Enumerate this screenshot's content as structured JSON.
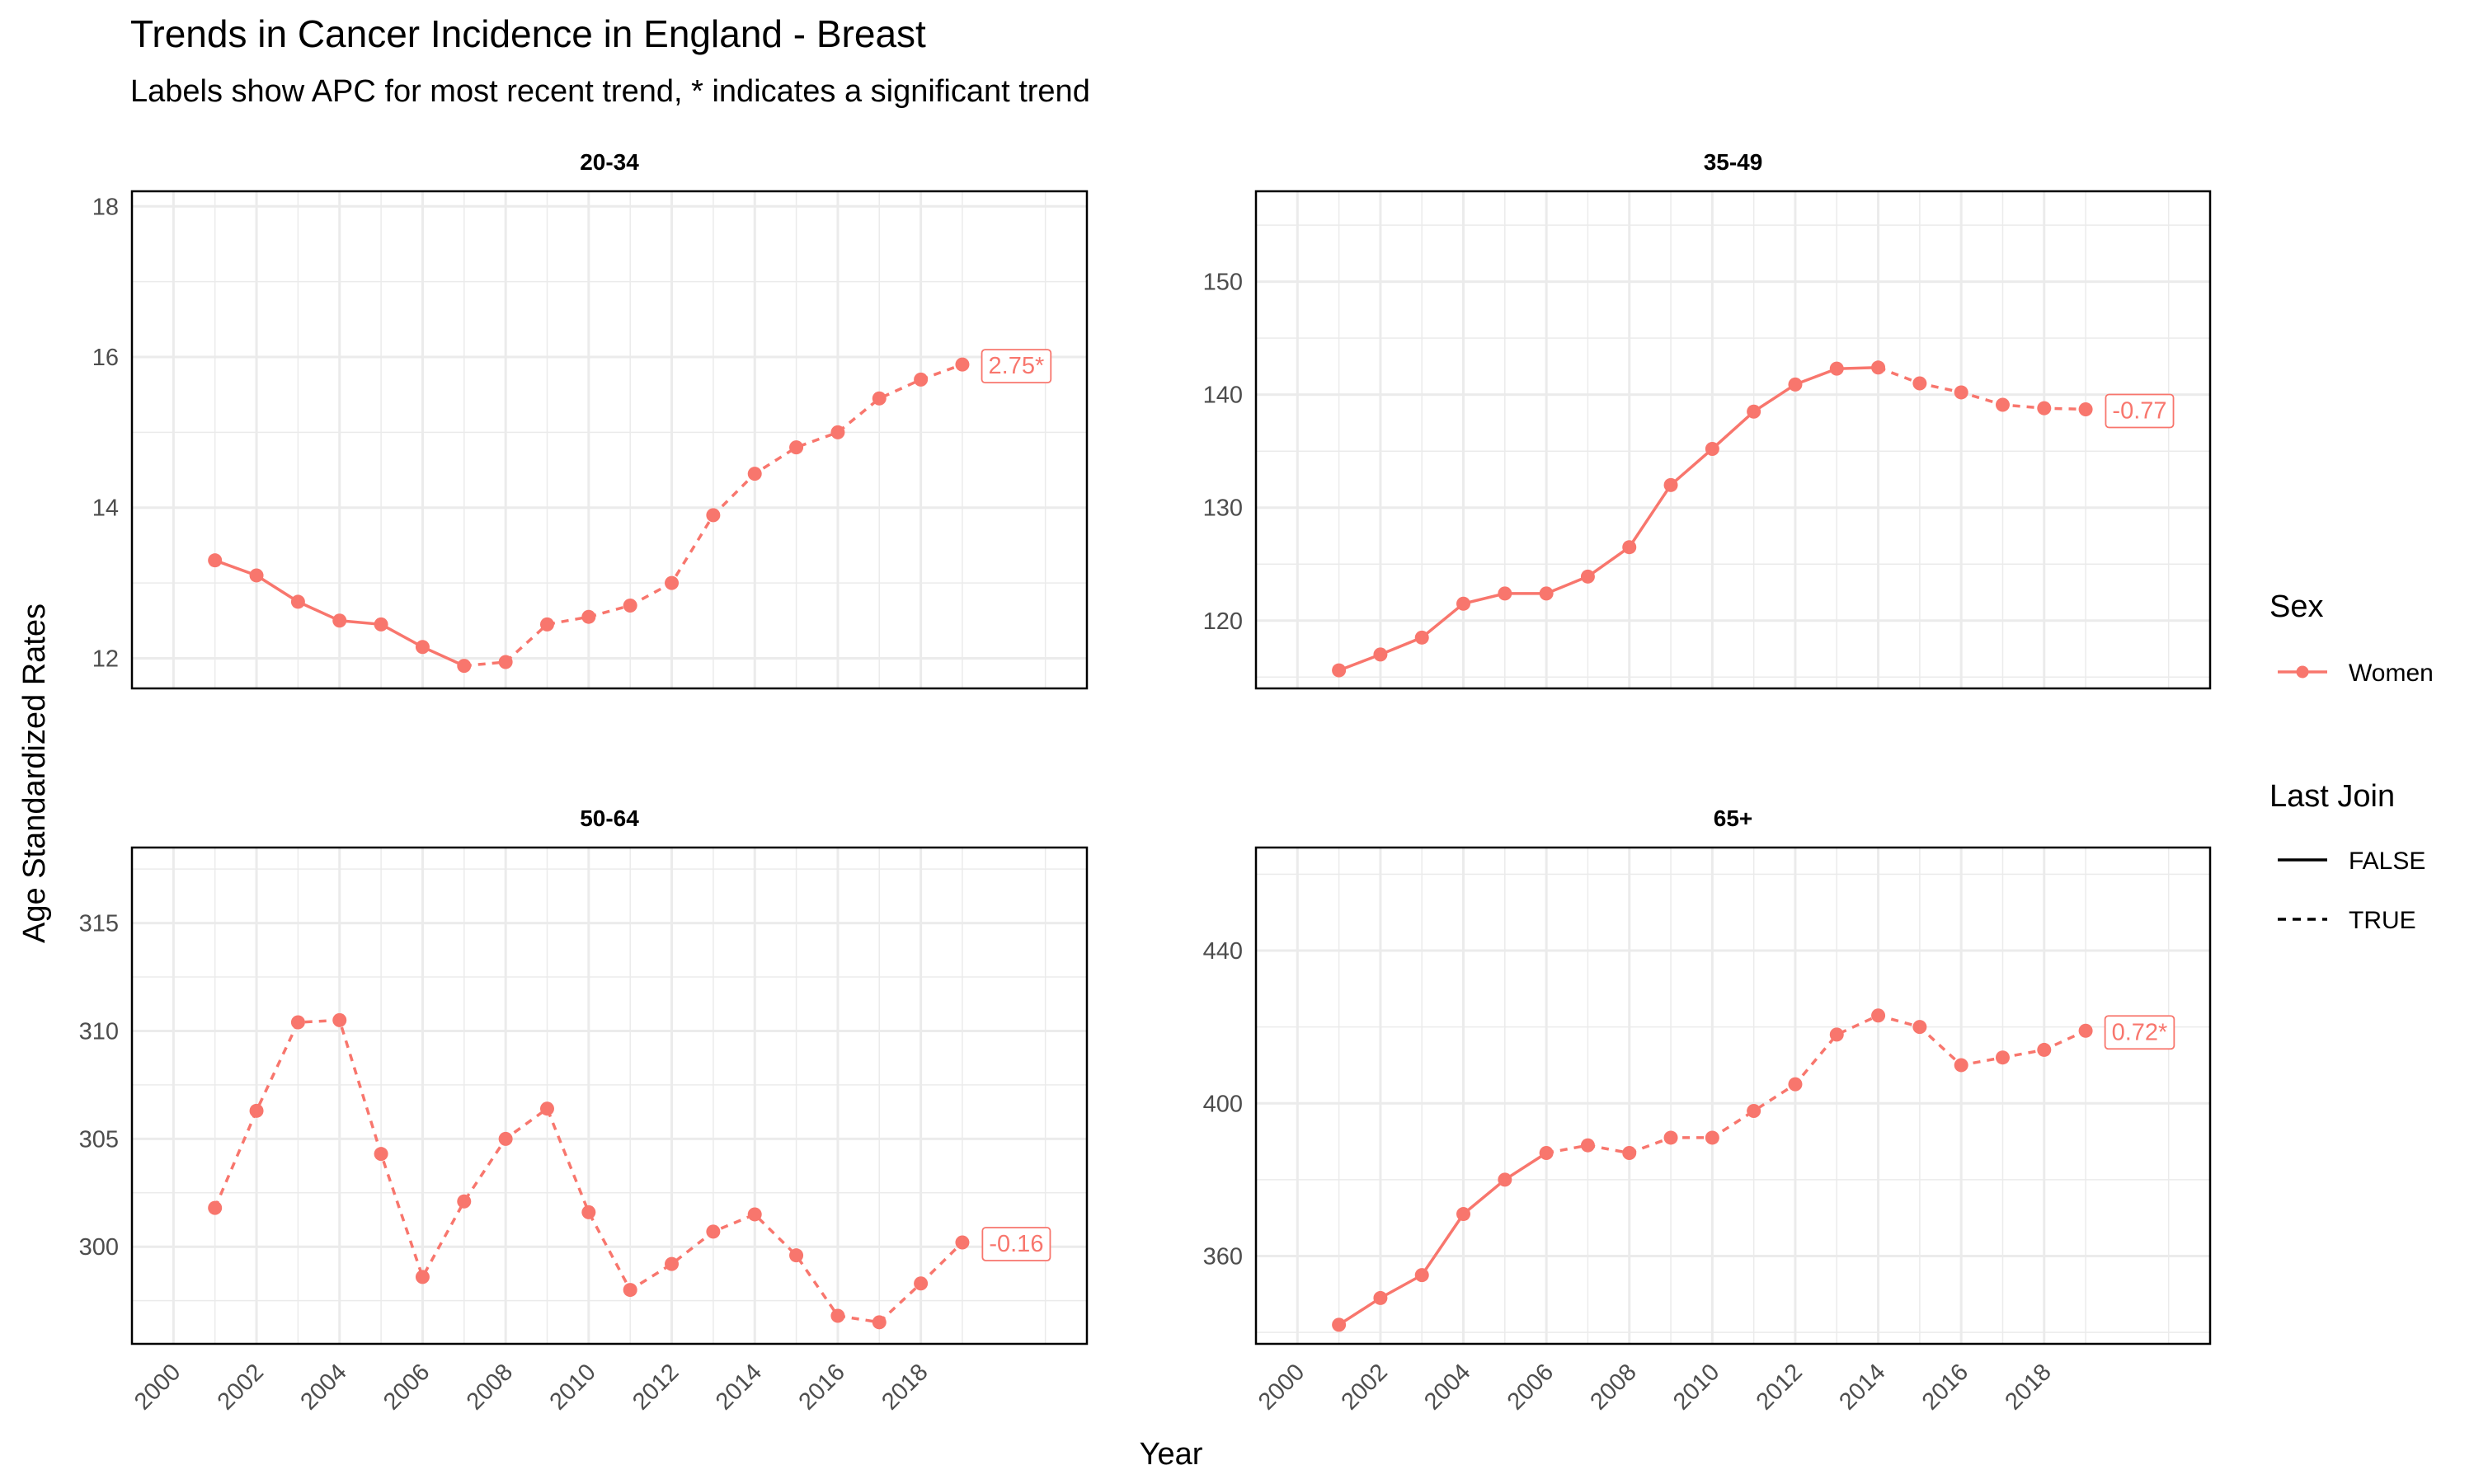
{
  "title": "Trends in Cancer Incidence in England - Breast",
  "subtitle": "Labels show APC for most recent trend, * indicates a significant trend",
  "colors": {
    "series": "#F8766D",
    "grid": "#EBEBEB",
    "frame": "#000000"
  },
  "chart_data": {
    "type": "line",
    "xlabel": "Year",
    "ylabel": "Age Standardized Rates",
    "x_ticks": [
      2000,
      2002,
      2004,
      2006,
      2008,
      2010,
      2012,
      2014,
      2016,
      2018
    ],
    "xlim": [
      1999.0,
      2022.0
    ],
    "legend": {
      "placement": "right",
      "sex": {
        "title": "Sex",
        "entries": [
          "Women"
        ]
      },
      "last_join": {
        "title": "Last Join",
        "entries": [
          {
            "label": "FALSE",
            "linetype": "solid"
          },
          {
            "label": "TRUE",
            "linetype": "dashed"
          }
        ]
      }
    },
    "panels": [
      {
        "title": "20-34",
        "ylim": [
          11.6,
          18.2
        ],
        "y_ticks": [
          12,
          14,
          16,
          18
        ],
        "series": "Women",
        "x": [
          2001,
          2002,
          2003,
          2004,
          2005,
          2006,
          2007,
          2008,
          2009,
          2010,
          2011,
          2012,
          2013,
          2014,
          2015,
          2016,
          2017,
          2018,
          2019
        ],
        "values": [
          13.3,
          13.1,
          12.75,
          12.5,
          12.45,
          12.15,
          11.9,
          11.95,
          12.45,
          12.55,
          12.7,
          13.0,
          13.9,
          14.45,
          14.8,
          15.0,
          15.45,
          15.7,
          15.9
        ],
        "last_join_start_index": 6,
        "apc_label": "2.75*"
      },
      {
        "title": "35-49",
        "ylim": [
          114,
          158
        ],
        "y_ticks": [
          120,
          130,
          140,
          150
        ],
        "series": "Women",
        "x": [
          2001,
          2002,
          2003,
          2004,
          2005,
          2006,
          2007,
          2008,
          2009,
          2010,
          2011,
          2012,
          2013,
          2014,
          2015,
          2016,
          2017,
          2018,
          2019
        ],
        "values": [
          115.6,
          117.0,
          118.5,
          121.5,
          122.4,
          122.4,
          123.9,
          126.5,
          132.0,
          135.2,
          138.5,
          140.9,
          142.3,
          142.4,
          141.0,
          140.2,
          139.1,
          138.8,
          138.7
        ],
        "last_join_start_index": 13,
        "apc_label": "-0.77"
      },
      {
        "title": "50-64",
        "ylim": [
          295.5,
          318.5
        ],
        "y_ticks": [
          300,
          305,
          310,
          315
        ],
        "series": "Women",
        "x": [
          2001,
          2002,
          2003,
          2004,
          2005,
          2006,
          2007,
          2008,
          2009,
          2010,
          2011,
          2012,
          2013,
          2014,
          2015,
          2016,
          2017,
          2018,
          2019
        ],
        "values": [
          301.8,
          306.3,
          310.4,
          310.5,
          304.3,
          298.6,
          302.1,
          305.0,
          306.4,
          301.6,
          298.0,
          299.2,
          300.7,
          301.5,
          299.6,
          296.8,
          296.5,
          298.3,
          300.2
        ],
        "last_join_start_index": 0,
        "apc_label": "-0.16"
      },
      {
        "title": "65+",
        "ylim": [
          337,
          467
        ],
        "y_ticks": [
          360,
          400,
          440
        ],
        "series": "Women",
        "x": [
          2001,
          2002,
          2003,
          2004,
          2005,
          2006,
          2007,
          2008,
          2009,
          2010,
          2011,
          2012,
          2013,
          2014,
          2015,
          2016,
          2017,
          2018,
          2019
        ],
        "values": [
          342,
          349,
          355,
          371,
          380,
          387,
          389,
          387,
          391,
          391,
          398,
          405,
          418,
          423,
          420,
          410,
          412,
          414,
          419
        ],
        "last_join_start_index": 5,
        "apc_label": "0.72*"
      }
    ]
  }
}
